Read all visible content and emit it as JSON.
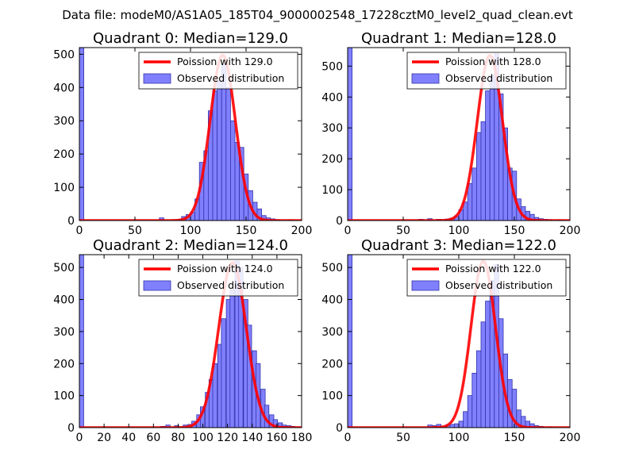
{
  "figure": {
    "suptitle": "Data file: modeM0/AS1A05_185T04_9000002548_17228cztM0_level2_quad_clean.evt",
    "colors": {
      "bar_fill": "#8080ff",
      "bar_edge": "#3333aa",
      "fit_line": "#ff0000",
      "axes": "#000000"
    }
  },
  "chart_data": [
    {
      "type": "bar",
      "title": "Quadrant 0: Median=129.0",
      "xlim": [
        0,
        200
      ],
      "ylim": [
        0,
        520
      ],
      "xticks": [
        0,
        50,
        100,
        150,
        200
      ],
      "yticks": [
        0,
        100,
        200,
        300,
        400,
        500
      ],
      "legend_position": "top-right",
      "legend": [
        "Poission with 129.0",
        "Observed distribution"
      ],
      "bin_width": 4,
      "bars": [
        [
          0,
          520
        ],
        [
          72,
          8
        ],
        [
          88,
          3
        ],
        [
          92,
          12
        ],
        [
          96,
          18
        ],
        [
          100,
          25
        ],
        [
          104,
          65
        ],
        [
          108,
          175
        ],
        [
          112,
          210
        ],
        [
          116,
          330
        ],
        [
          120,
          390
        ],
        [
          124,
          420
        ],
        [
          128,
          470
        ],
        [
          132,
          400
        ],
        [
          136,
          300
        ],
        [
          140,
          235
        ],
        [
          144,
          220
        ],
        [
          148,
          140
        ],
        [
          152,
          90
        ],
        [
          156,
          55
        ],
        [
          160,
          35
        ],
        [
          164,
          15
        ],
        [
          168,
          8
        ],
        [
          172,
          5
        ],
        [
          176,
          3
        ],
        [
          188,
          2
        ]
      ],
      "fit": {
        "lambda": 129,
        "peak": 497
      }
    },
    {
      "type": "bar",
      "title": "Quadrant 1: Median=128.0",
      "xlim": [
        0,
        200
      ],
      "ylim": [
        0,
        560
      ],
      "xticks": [
        0,
        50,
        100,
        150,
        200
      ],
      "yticks": [
        0,
        100,
        200,
        300,
        400,
        500
      ],
      "legend_position": "top-right",
      "legend": [
        "Poission with 128.0",
        "Observed distribution"
      ],
      "bin_width": 4,
      "bars": [
        [
          0,
          560
        ],
        [
          64,
          4
        ],
        [
          72,
          6
        ],
        [
          80,
          4
        ],
        [
          88,
          5
        ],
        [
          92,
          8
        ],
        [
          96,
          15
        ],
        [
          100,
          35
        ],
        [
          104,
          60
        ],
        [
          108,
          120
        ],
        [
          112,
          170
        ],
        [
          116,
          285
        ],
        [
          120,
          320
        ],
        [
          124,
          420
        ],
        [
          128,
          470
        ],
        [
          132,
          540
        ],
        [
          136,
          410
        ],
        [
          140,
          300
        ],
        [
          144,
          170
        ],
        [
          148,
          160
        ],
        [
          152,
          70
        ],
        [
          156,
          45
        ],
        [
          160,
          30
        ],
        [
          164,
          20
        ],
        [
          168,
          10
        ],
        [
          172,
          6
        ],
        [
          176,
          4
        ],
        [
          180,
          3
        ],
        [
          188,
          2
        ]
      ],
      "fit": {
        "lambda": 128,
        "peak": 535
      }
    },
    {
      "type": "bar",
      "title": "Quadrant 2: Median=124.0",
      "xlim": [
        0,
        180
      ],
      "ylim": [
        0,
        540
      ],
      "xticks": [
        0,
        20,
        40,
        60,
        80,
        100,
        120,
        140,
        160,
        180
      ],
      "yticks": [
        0,
        100,
        200,
        300,
        400,
        500
      ],
      "legend_position": "top-right",
      "legend": [
        "Poission with 124.0",
        "Observed distribution"
      ],
      "bin_width": 3.5,
      "bars": [
        [
          0,
          540
        ],
        [
          66,
          4
        ],
        [
          70,
          8
        ],
        [
          77,
          6
        ],
        [
          84,
          8
        ],
        [
          88,
          10
        ],
        [
          91,
          20
        ],
        [
          95,
          40
        ],
        [
          98,
          65
        ],
        [
          102,
          110
        ],
        [
          105,
          150
        ],
        [
          108,
          200
        ],
        [
          112,
          260
        ],
        [
          115,
          340
        ],
        [
          119,
          400
        ],
        [
          122,
          430
        ],
        [
          126,
          520
        ],
        [
          129,
          500
        ],
        [
          133,
          400
        ],
        [
          136,
          320
        ],
        [
          140,
          240
        ],
        [
          143,
          200
        ],
        [
          147,
          120
        ],
        [
          150,
          70
        ],
        [
          154,
          40
        ],
        [
          157,
          25
        ],
        [
          161,
          15
        ],
        [
          164,
          8
        ],
        [
          168,
          6
        ],
        [
          171,
          4
        ],
        [
          175,
          2
        ]
      ],
      "fit": {
        "lambda": 124,
        "peak": 515
      }
    },
    {
      "type": "bar",
      "title": "Quadrant 3: Median=122.0",
      "xlim": [
        0,
        200
      ],
      "ylim": [
        0,
        540
      ],
      "xticks": [
        0,
        50,
        100,
        150,
        200
      ],
      "yticks": [
        0,
        100,
        200,
        300,
        400,
        500
      ],
      "legend_position": "top-right",
      "legend": [
        "Poission with 122.0",
        "Observed distribution"
      ],
      "bin_width": 4,
      "bars": [
        [
          0,
          540
        ],
        [
          72,
          8
        ],
        [
          76,
          6
        ],
        [
          80,
          10
        ],
        [
          84,
          4
        ],
        [
          88,
          8
        ],
        [
          92,
          10
        ],
        [
          96,
          12
        ],
        [
          100,
          20
        ],
        [
          104,
          50
        ],
        [
          108,
          100
        ],
        [
          112,
          170
        ],
        [
          116,
          240
        ],
        [
          120,
          330
        ],
        [
          124,
          395
        ],
        [
          128,
          460
        ],
        [
          132,
          510
        ],
        [
          136,
          340
        ],
        [
          140,
          230
        ],
        [
          144,
          150
        ],
        [
          148,
          120
        ],
        [
          152,
          55
        ],
        [
          156,
          35
        ],
        [
          160,
          20
        ],
        [
          164,
          12
        ],
        [
          168,
          6
        ],
        [
          172,
          4
        ],
        [
          180,
          2
        ]
      ],
      "fit": {
        "lambda": 122,
        "peak": 520
      }
    }
  ]
}
